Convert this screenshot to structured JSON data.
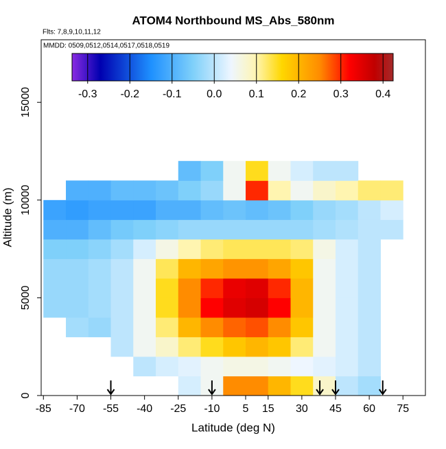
{
  "chart_data": {
    "type": "heatmap",
    "title": "ATOM4 Northbound MS_Abs_580nm",
    "subtitle": "Flts: 7,8,9,10,11,12",
    "annotation": "MMDD: 0509,0512,0514,0517,0518,0519",
    "x_label": "Latitude (deg N)",
    "y_label": "Altitude (m)",
    "xlim": [
      -86,
      85
    ],
    "ylim": [
      0,
      18200
    ],
    "xticks": [
      -85,
      -70,
      -55,
      -40,
      -25,
      -10,
      5,
      15,
      30,
      45,
      60,
      75
    ],
    "yticks": [
      0,
      5000,
      10000,
      15000
    ],
    "xbins": [
      -85,
      -75,
      -65,
      -55,
      -45,
      -35,
      -25,
      -15,
      -5,
      5,
      15,
      25,
      35,
      45,
      55,
      65,
      75
    ],
    "ybins": [
      0,
      1000,
      2000,
      3000,
      4000,
      5000,
      6000,
      7000,
      8000,
      9000,
      10000,
      11000,
      12000
    ],
    "values": [
      [
        null,
        null,
        null,
        null,
        null,
        null,
        0.02,
        0.05,
        0.25,
        0.25,
        0.2,
        0.15,
        0.08,
        0.0,
        -0.02,
        null
      ],
      [
        null,
        null,
        null,
        null,
        0.0,
        0.02,
        0.03,
        0.05,
        0.06,
        0.06,
        0.05,
        0.04,
        0.03,
        0.02,
        0.0,
        null
      ],
      [
        null,
        null,
        null,
        0.0,
        0.05,
        0.08,
        0.12,
        0.15,
        0.18,
        0.2,
        0.18,
        0.12,
        0.05,
        0.02,
        0.0,
        null
      ],
      [
        null,
        -0.02,
        -0.03,
        0.0,
        0.05,
        0.12,
        0.2,
        0.25,
        0.27,
        0.28,
        0.25,
        0.18,
        0.05,
        0.02,
        0.0,
        null
      ],
      [
        -0.03,
        -0.03,
        -0.02,
        0.0,
        0.05,
        0.15,
        0.25,
        0.32,
        0.35,
        0.36,
        0.32,
        0.2,
        0.05,
        0.02,
        0.0,
        null
      ],
      [
        -0.03,
        -0.03,
        -0.02,
        0.0,
        0.05,
        0.15,
        0.25,
        0.3,
        0.34,
        0.35,
        0.3,
        0.2,
        0.05,
        0.02,
        0.0,
        null
      ],
      [
        -0.03,
        -0.03,
        -0.02,
        0.0,
        0.05,
        0.13,
        0.2,
        0.22,
        0.24,
        0.24,
        0.22,
        0.18,
        0.05,
        0.02,
        0.0,
        null
      ],
      [
        -0.05,
        -0.05,
        -0.04,
        -0.02,
        0.02,
        0.06,
        0.1,
        0.12,
        0.13,
        0.13,
        0.13,
        0.12,
        0.06,
        0.02,
        0.0,
        null
      ],
      [
        -0.1,
        -0.1,
        -0.08,
        -0.06,
        -0.05,
        -0.04,
        -0.03,
        -0.03,
        -0.03,
        -0.03,
        -0.03,
        -0.03,
        -0.02,
        -0.01,
        0.0,
        0.0
      ],
      [
        -0.12,
        -0.13,
        -0.12,
        -0.12,
        -0.12,
        -0.1,
        -0.1,
        -0.08,
        -0.07,
        -0.08,
        -0.07,
        -0.05,
        -0.03,
        -0.02,
        0.0,
        0.02
      ],
      [
        null,
        -0.1,
        -0.1,
        -0.08,
        -0.08,
        -0.07,
        -0.05,
        -0.03,
        0.05,
        0.3,
        0.1,
        0.05,
        0.08,
        0.1,
        0.12,
        0.12
      ],
      [
        null,
        null,
        null,
        null,
        null,
        null,
        -0.08,
        -0.05,
        0.05,
        0.15,
        0.05,
        0.02,
        0.0,
        0.0,
        null,
        null
      ]
    ],
    "clim": [
      -0.337,
      0.424
    ],
    "cticks": [
      -0.3,
      -0.2,
      -0.1,
      {
        "value": 0,
        "label": "0.0"
      },
      0.1,
      0.2,
      0.3,
      0.4
    ],
    "colorscale": [
      [
        -0.337,
        "#8a2be2"
      ],
      [
        -0.27,
        "#0000b0"
      ],
      [
        -0.15,
        "#1e90ff"
      ],
      [
        -0.05,
        "#7fd0fa"
      ],
      [
        0.04,
        "#eef6ff"
      ],
      [
        0.1,
        "#fff5b0"
      ],
      [
        0.16,
        "#ffd700"
      ],
      [
        0.25,
        "#ff8c00"
      ],
      [
        0.32,
        "#ff0000"
      ],
      [
        0.38,
        "#c00000"
      ],
      [
        0.424,
        "#a52a2a"
      ]
    ],
    "arrows": [
      -55,
      -10,
      38,
      45,
      66
    ]
  }
}
